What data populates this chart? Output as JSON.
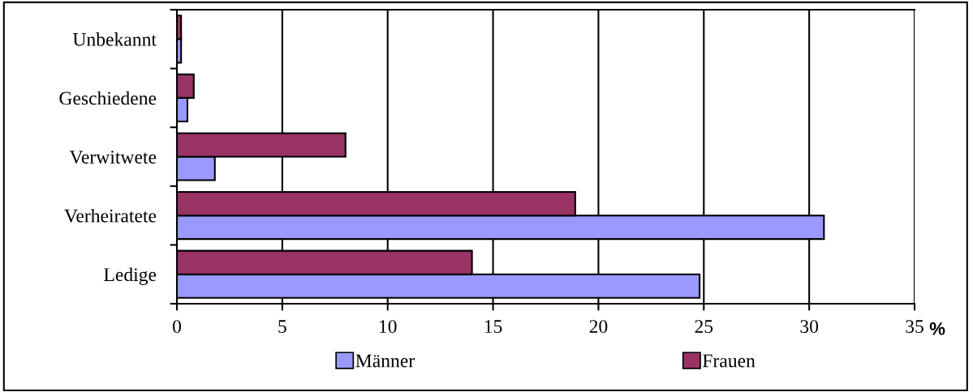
{
  "chart_data": {
    "type": "bar",
    "orientation": "horizontal",
    "xlabel": "%",
    "categories": [
      "Unbekannt",
      "Geschiedene",
      "Verwitwete",
      "Verheiratete",
      "Ledige"
    ],
    "series": [
      {
        "name": "Männer",
        "color": "#9999ff",
        "values": [
          0.2,
          0.5,
          1.8,
          30.7,
          24.8
        ]
      },
      {
        "name": "Frauen",
        "color": "#993366",
        "values": [
          0.2,
          0.8,
          8.0,
          18.9,
          14.0
        ]
      }
    ],
    "xlim": [
      0,
      35
    ],
    "xticks": [
      0,
      5,
      10,
      15,
      20,
      25,
      30,
      35
    ],
    "grid": "x",
    "legend": "bottom"
  }
}
